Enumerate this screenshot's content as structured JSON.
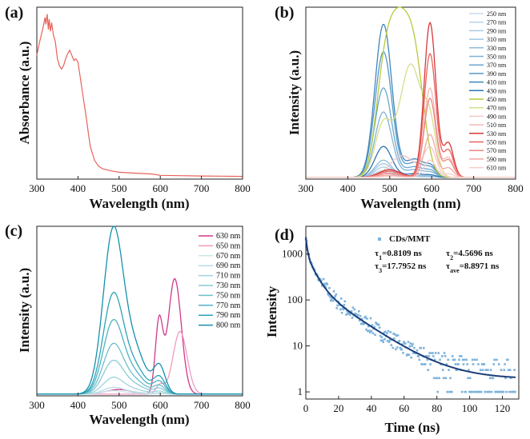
{
  "chart_data": [
    {
      "panel": "(a)",
      "type": "line",
      "xlabel": "Wavelength (nm)",
      "ylabel": "Absorbance (a.u.)",
      "xlim": [
        300,
        800
      ],
      "xticks": [
        300,
        400,
        500,
        600,
        700,
        800
      ],
      "grid": false,
      "color": "#e8625a",
      "series": [
        {
          "x": [
            300,
            305,
            310,
            315,
            320,
            322,
            325,
            328,
            330,
            333,
            336,
            340,
            345,
            350,
            355,
            360,
            365,
            370,
            375,
            380,
            385,
            390,
            395,
            400,
            405,
            410,
            415,
            420,
            425,
            430,
            440,
            450,
            460,
            480,
            500,
            550,
            580,
            600,
            650,
            700,
            750,
            800
          ],
          "y": [
            0.72,
            0.78,
            0.83,
            0.88,
            0.94,
            0.9,
            0.96,
            0.87,
            0.93,
            0.86,
            0.91,
            0.84,
            0.8,
            0.7,
            0.66,
            0.64,
            0.66,
            0.7,
            0.73,
            0.75,
            0.72,
            0.69,
            0.7,
            0.68,
            0.6,
            0.52,
            0.44,
            0.36,
            0.27,
            0.19,
            0.11,
            0.075,
            0.06,
            0.048,
            0.04,
            0.033,
            0.03,
            0.022,
            0.02,
            0.018,
            0.017,
            0.016
          ]
        }
      ]
    },
    {
      "panel": "(b)",
      "type": "line",
      "xlabel": "Wavelength (nm)",
      "ylabel": "Intensity (a.u.)",
      "xlim": [
        300,
        800
      ],
      "xticks": [
        300,
        400,
        500,
        600,
        700,
        800
      ],
      "legend_position": "right",
      "series": [
        {
          "name": "250 nm",
          "color": "#c6dbef",
          "peak": 485,
          "height": 0.03,
          "shape": "blue"
        },
        {
          "name": "270 nm",
          "color": "#b8d3ea",
          "peak": 485,
          "height": 0.04,
          "shape": "blue"
        },
        {
          "name": "290 nm",
          "color": "#a9cce6",
          "peak": 485,
          "height": 0.06,
          "shape": "blue"
        },
        {
          "name": "310 nm",
          "color": "#9ec6e3",
          "peak": 485,
          "height": 0.08,
          "shape": "blue"
        },
        {
          "name": "330 nm",
          "color": "#8fbcdc",
          "peak": 485,
          "height": 0.1,
          "shape": "blue"
        },
        {
          "name": "350 nm",
          "color": "#7fb2d6",
          "peak": 485,
          "height": 0.38,
          "shape": "blue"
        },
        {
          "name": "370 nm",
          "color": "#6aa6cf",
          "peak": 485,
          "height": 0.52,
          "shape": "blue"
        },
        {
          "name": "390 nm",
          "color": "#5597c6",
          "peak": 485,
          "height": 0.73,
          "shape": "blue"
        },
        {
          "name": "410 nm",
          "color": "#3f86bd",
          "peak": 485,
          "height": 0.89,
          "shape": "blue"
        },
        {
          "name": "430 nm",
          "color": "#2d73b5",
          "peak": 485,
          "height": 0.18,
          "shape": "blue"
        },
        {
          "name": "450 nm",
          "color": "#b8c93a",
          "peak": 520,
          "height": 0.99,
          "shape": "green"
        },
        {
          "name": "470 nm",
          "color": "#d7dc8a",
          "peak": 545,
          "height": 0.66,
          "shape": "green2"
        },
        {
          "name": "490 nm",
          "color": "#f2c7c4",
          "peak": 560,
          "height": 0.18,
          "shape": "mixed"
        },
        {
          "name": "510 nm",
          "color": "#f5b8b4",
          "peak": 596,
          "height": 0.52,
          "shape": "red"
        },
        {
          "name": "530 nm",
          "color": "#d9383a",
          "peak": 596,
          "height": 0.9,
          "shape": "red"
        },
        {
          "name": "550 nm",
          "color": "#e8635e",
          "peak": 596,
          "height": 0.72,
          "shape": "red"
        },
        {
          "name": "570 nm",
          "color": "#ec8580",
          "peak": 596,
          "height": 0.46,
          "shape": "red"
        },
        {
          "name": "590 nm",
          "color": "#f1a7a2",
          "peak": 596,
          "height": 0.25,
          "shape": "red"
        },
        {
          "name": "610 nm",
          "color": "#f7cdc9",
          "peak": 596,
          "height": 0.1,
          "shape": "red"
        }
      ]
    },
    {
      "panel": "(c)",
      "type": "line",
      "xlabel": "Wavelength (nm)",
      "ylabel": "Intensity (a.u.)",
      "xlim": [
        300,
        800
      ],
      "xticks": [
        300,
        400,
        500,
        600,
        700,
        800
      ],
      "legend_position": "right",
      "series": [
        {
          "name": "630 nm",
          "color": "#d0388a",
          "peak": 635,
          "height": 0.68,
          "shape": "pink"
        },
        {
          "name": "650 nm",
          "color": "#f19ac3",
          "peak": 648,
          "height": 0.37,
          "shape": "pink2"
        },
        {
          "name": "670 nm",
          "color": "#c8e7ea",
          "peak": 485,
          "height": 0.02,
          "shape": "teal"
        },
        {
          "name": "690 nm",
          "color": "#b3dde3",
          "peak": 485,
          "height": 0.04,
          "shape": "teal"
        },
        {
          "name": "710 nm",
          "color": "#9ed4dc",
          "peak": 485,
          "height": 0.1,
          "shape": "teal"
        },
        {
          "name": "730 nm",
          "color": "#87cad4",
          "peak": 485,
          "height": 0.2,
          "shape": "teal"
        },
        {
          "name": "750 nm",
          "color": "#6dbfcc",
          "peak": 485,
          "height": 0.3,
          "shape": "teal"
        },
        {
          "name": "770 nm",
          "color": "#4fb2c3",
          "peak": 485,
          "height": 0.44,
          "shape": "teal"
        },
        {
          "name": "790 nm",
          "color": "#2ea3b8",
          "peak": 485,
          "height": 0.6,
          "shape": "teal"
        },
        {
          "name": "800 nm",
          "color": "#1590ad",
          "peak": 485,
          "height": 0.99,
          "shape": "teal"
        }
      ]
    },
    {
      "panel": "(d)",
      "type": "scatter",
      "xlabel": "Time (ns)",
      "ylabel": "Intensity",
      "xlim": [
        0,
        130
      ],
      "xticks": [
        0,
        20,
        40,
        60,
        80,
        100,
        120
      ],
      "ylog": true,
      "ylim": [
        0.7,
        4000
      ],
      "yticks": [
        1,
        10,
        100,
        1000
      ],
      "legend": "CDs/MMT",
      "annotations": [
        "τ1=0.8109 ns",
        "τ2=4.5696 ns",
        "τ3=17.7952 ns",
        "τave=8.8971 ns"
      ],
      "fit_params": {
        "A1": 1300,
        "t1": 0.8109,
        "A2": 800,
        "t2": 4.5696,
        "A3": 230,
        "t3": 17.7952,
        "baseline": 1.9
      },
      "point_color": "#7db3dc",
      "fit_color": "#1b3f78"
    }
  ],
  "labels": {
    "a": "(a)",
    "b": "(b)",
    "c": "(c)",
    "d": "(d)",
    "d_legend": "CDs/MMT",
    "d_tau1_sym": "τ",
    "d_tau1_sub": "1",
    "d_tau1_val": "=0.8109 ns",
    "d_tau2_sym": "τ",
    "d_tau2_sub": "2",
    "d_tau2_val": "=4.5696 ns",
    "d_tau3_sym": "τ",
    "d_tau3_sub": "3",
    "d_tau3_val": "=17.7952 ns",
    "d_tauave_sym": "τ",
    "d_tauave_sub": "ave",
    "d_tauave_val": "=8.8971 ns"
  }
}
